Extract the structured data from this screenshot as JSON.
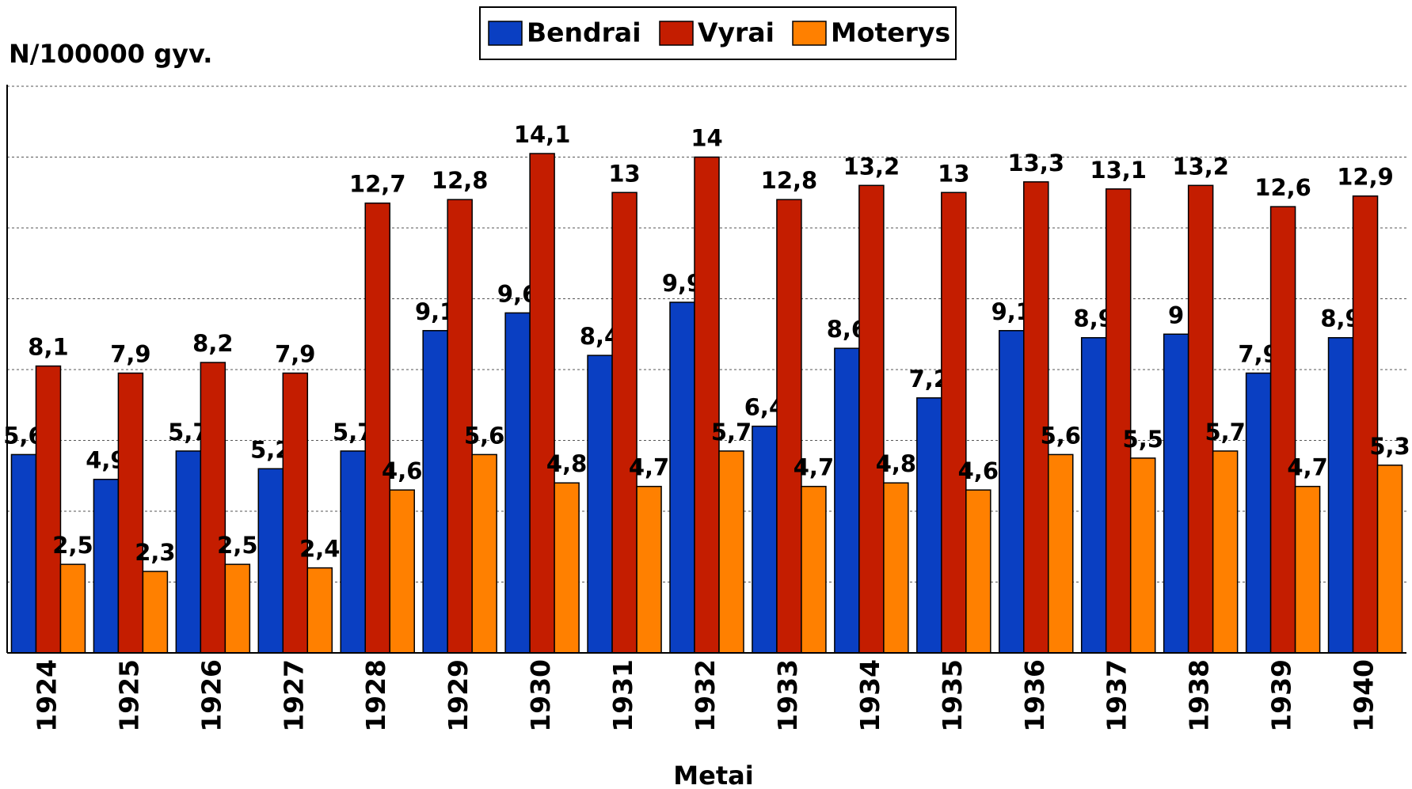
{
  "chart_data": {
    "type": "bar",
    "title": "N/100000 gyv.",
    "x_label": "Metai",
    "categories": [
      "1924",
      "1925",
      "1926",
      "1927",
      "1928",
      "1929",
      "1930",
      "1931",
      "1932",
      "1933",
      "1934",
      "1935",
      "1936",
      "1937",
      "1938",
      "1939",
      "1940"
    ],
    "series": [
      {
        "name": "Bendrai",
        "color": "#0a3fc2",
        "values": [
          5.6,
          4.9,
          5.7,
          5.2,
          5.7,
          9.1,
          9.6,
          8.4,
          9.9,
          6.4,
          8.6,
          7.2,
          9.1,
          8.9,
          9,
          7.9,
          8.9
        ],
        "value_labels": [
          "5,6",
          "4,9",
          "5,7",
          "5,2",
          "5,7",
          "9,1",
          "9,6",
          "8,4",
          "9,9",
          "6,4",
          "8,6",
          "7,2",
          "9,1",
          "8,9",
          "9",
          "7,9",
          "8,9"
        ]
      },
      {
        "name": "Vyrai",
        "color": "#c41d00",
        "values": [
          8.1,
          7.9,
          8.2,
          7.9,
          12.7,
          12.8,
          14.1,
          13,
          14,
          12.8,
          13.2,
          13,
          13.3,
          13.1,
          13.2,
          12.6,
          12.9
        ],
        "value_labels": [
          "8,1",
          "7,9",
          "8,2",
          "7,9",
          "12,7",
          "12,8",
          "14,1",
          "13",
          "14",
          "12,8",
          "13,2",
          "13",
          "13,3",
          "13,1",
          "13,2",
          "12,6",
          "12,9"
        ]
      },
      {
        "name": "Moterys",
        "color": "#ff8000",
        "values": [
          2.5,
          2.3,
          2.5,
          2.4,
          4.6,
          5.6,
          4.8,
          4.7,
          5.7,
          4.7,
          4.8,
          4.6,
          5.6,
          5.5,
          5.7,
          4.7,
          5.3
        ],
        "value_labels": [
          "2,5",
          "2,3",
          "2,5",
          "2,4",
          "4,6",
          "5,6",
          "4,8",
          "4,7",
          "5,7",
          "4,7",
          "4,8",
          "4,6",
          "5,6",
          "5,5",
          "5,7",
          "4,7",
          "5,3"
        ]
      }
    ],
    "ylim": [
      0,
      16
    ],
    "yticks": [
      0,
      2,
      4,
      6,
      8,
      10,
      12,
      14,
      16
    ],
    "grid": true,
    "legend": "top"
  }
}
